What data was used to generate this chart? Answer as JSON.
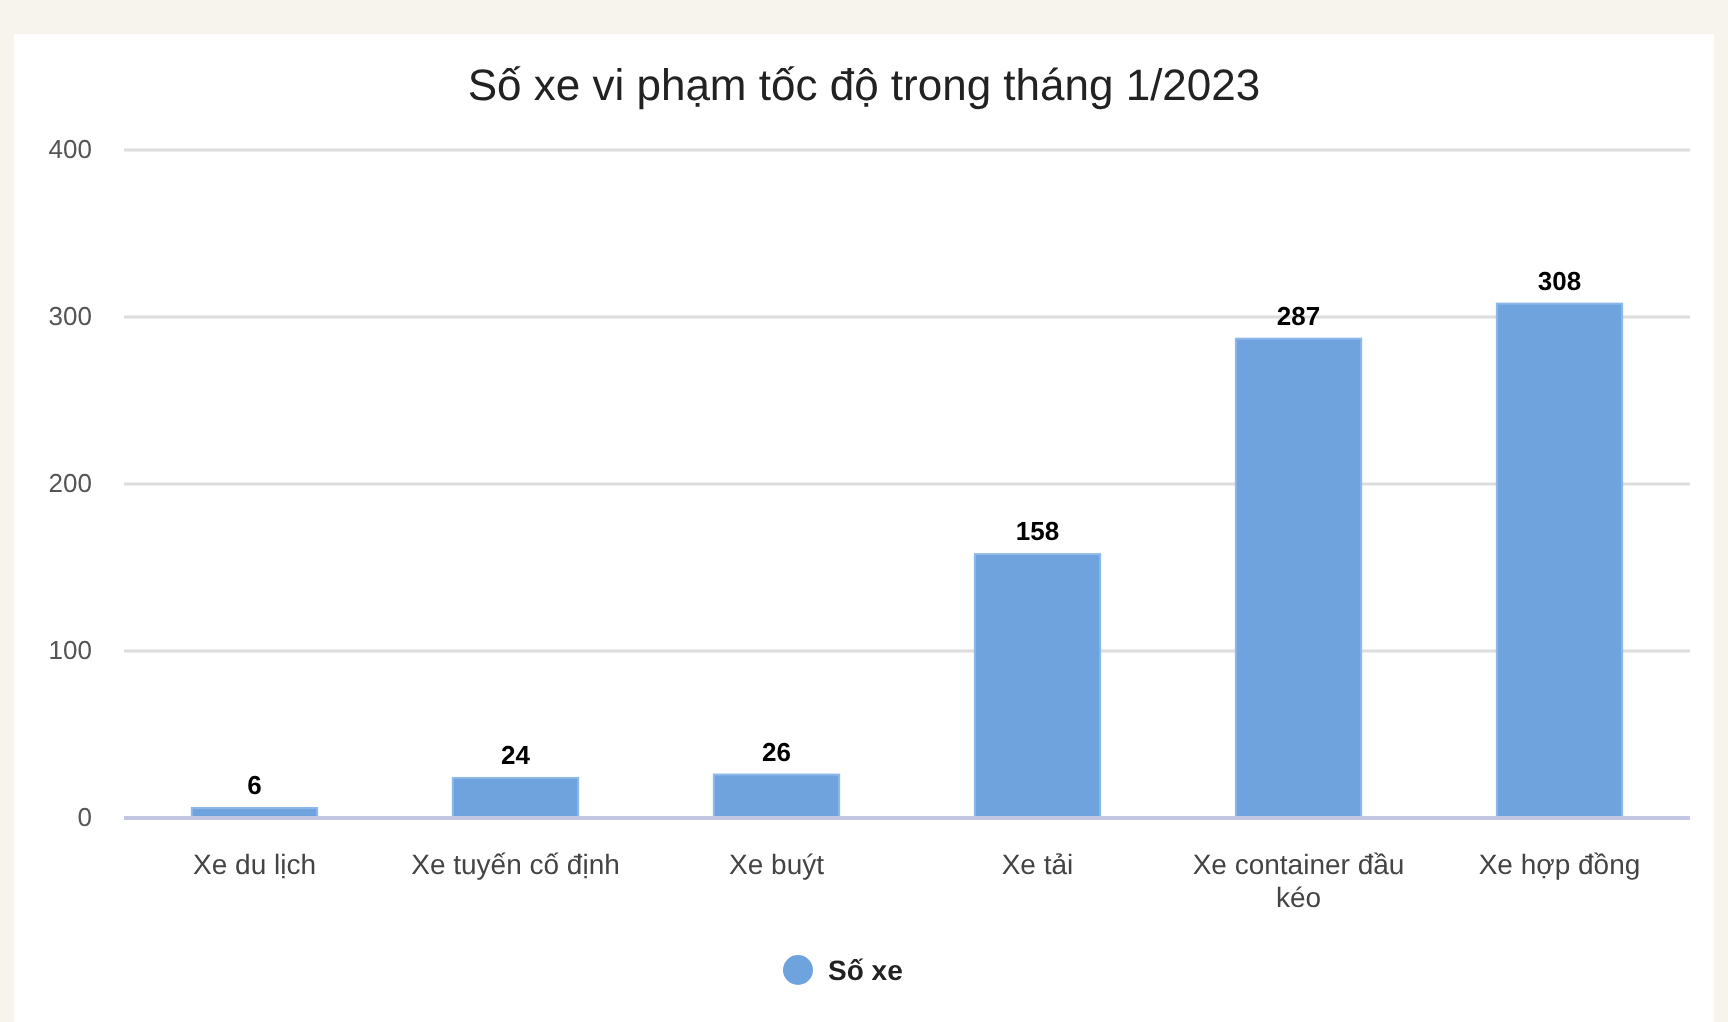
{
  "chart_data": {
    "type": "bar",
    "title": "Số xe vi phạm tốc độ trong tháng 1/2023",
    "categories": [
      "Xe du lịch",
      "Xe tuyến cố định",
      "Xe buýt",
      "Xe tải",
      "Xe container đầu kéo",
      "Xe hợp đồng"
    ],
    "series": [
      {
        "name": "Số xe",
        "color": "#6fa3de",
        "values": [
          6,
          24,
          26,
          158,
          287,
          308
        ]
      }
    ],
    "ylim": [
      0,
      400
    ],
    "yticks": [
      0,
      100,
      200,
      300,
      400
    ],
    "grid": "y",
    "legend": "bottom",
    "data_labels": true
  }
}
